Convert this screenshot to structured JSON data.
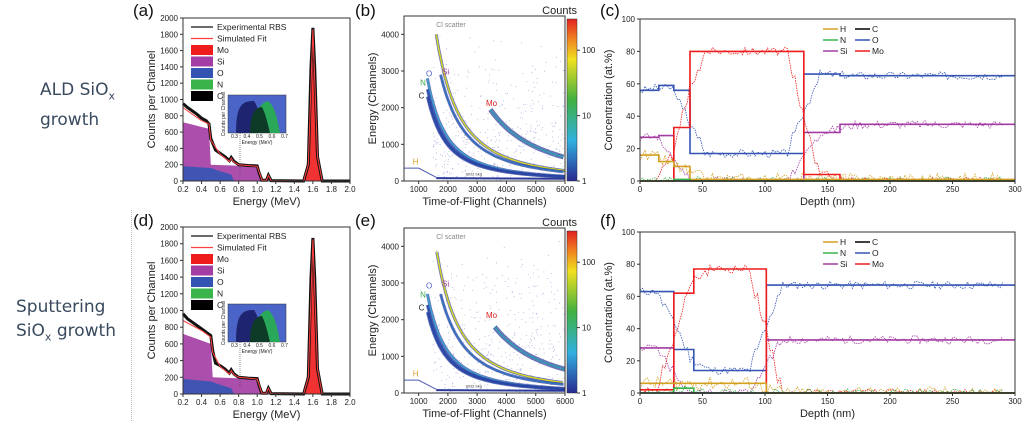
{
  "row_labels": [
    {
      "main": "ALD SiO",
      "sub": "x",
      "line2": "growth"
    },
    {
      "main": "Sputtering",
      "line2_pre": "SiO",
      "sub": "x",
      "line2": " growth"
    }
  ],
  "colors": {
    "Mo": "#ee1c1c",
    "Si": "#a33ca3",
    "O": "#3454b4",
    "N": "#38b44a",
    "C": "#000000",
    "H": "#d4a020",
    "exp": "#111111",
    "fit": "#ff4040"
  },
  "chart_data": [
    {
      "id": "a",
      "panel_label": "(a)",
      "type": "area",
      "title": "",
      "xlabel": "Energy (MeV)",
      "ylabel": "Counts per Channel",
      "xlim": [
        0.2,
        2.0
      ],
      "ylim": [
        0,
        2000
      ],
      "xticks": [
        "0.2",
        "0.4",
        "0.6",
        "0.8",
        "1.0",
        "1.2",
        "1.4",
        "1.6",
        "1.8",
        "2.0"
      ],
      "yticks": [
        "0",
        "200",
        "400",
        "600",
        "800",
        "1000",
        "1200",
        "1400",
        "1600",
        "1800",
        "2000"
      ],
      "legend": [
        "Experimental RBS",
        "Simulated Fit",
        "Mo",
        "Si",
        "O",
        "N",
        "C"
      ],
      "legend_position": "top-left",
      "series": [
        {
          "name": "Experimental RBS",
          "x": [
            0.2,
            0.25,
            0.3,
            0.35,
            0.4,
            0.45,
            0.48,
            0.5,
            0.55,
            0.6,
            0.65,
            0.7,
            0.72,
            0.75,
            0.8,
            0.9,
            1.0,
            1.02,
            1.05,
            1.1,
            1.12,
            1.15,
            1.5,
            1.55,
            1.58,
            1.6,
            1.62,
            1.65,
            1.7,
            2.0
          ],
          "y": [
            950,
            900,
            860,
            820,
            770,
            740,
            700,
            520,
            380,
            340,
            300,
            250,
            290,
            240,
            200,
            190,
            185,
            100,
            10,
            10,
            70,
            5,
            0,
            200,
            1400,
            1880,
            1400,
            300,
            0,
            0
          ]
        },
        {
          "name": "Simulated Fit",
          "x": [
            0.2,
            0.3,
            0.4,
            0.48,
            0.5,
            0.6,
            0.7,
            0.72,
            0.75,
            0.8,
            1.0,
            1.05,
            1.1,
            1.12,
            1.15,
            1.5,
            1.55,
            1.6,
            1.65,
            1.7,
            2.0
          ],
          "y": [
            900,
            820,
            740,
            700,
            500,
            330,
            240,
            280,
            230,
            200,
            180,
            10,
            10,
            70,
            5,
            0,
            200,
            1860,
            300,
            0,
            0
          ]
        },
        {
          "name": "Si",
          "x": [
            0.2,
            0.48,
            0.5,
            0.98,
            1.05,
            1.1,
            1.12,
            1.15
          ],
          "y": [
            720,
            640,
            200,
            180,
            0,
            0,
            70,
            0
          ]
        },
        {
          "name": "O",
          "x": [
            0.2,
            0.5,
            0.6,
            0.72,
            0.75
          ],
          "y": [
            180,
            160,
            120,
            80,
            0
          ]
        },
        {
          "name": "Mo",
          "x": [
            1.5,
            1.55,
            1.58,
            1.6,
            1.62,
            1.65,
            1.7
          ],
          "y": [
            0,
            300,
            1500,
            1850,
            1500,
            300,
            0
          ]
        }
      ],
      "inset": {
        "xlabel": "Energy (MeV)",
        "ylabel": "Counts per Channel",
        "xticks": [
          "0.3",
          "0.4",
          "0.5",
          "0.6",
          "0.7"
        ]
      }
    },
    {
      "id": "b",
      "panel_label": "(b)",
      "type": "heatmap",
      "xlabel": "Time-of-Flight (Channels)",
      "ylabel": "Energy (Channels)",
      "xlim": [
        500,
        6000
      ],
      "ylim": [
        0,
        4500
      ],
      "xticks": [
        "1000",
        "2000",
        "3000",
        "4000",
        "5000",
        "6000"
      ],
      "yticks": [
        "0",
        "1000",
        "2000",
        "3000",
        "4000"
      ],
      "colorbar": {
        "label": "Counts",
        "scale": "log",
        "ticks": [
          "1",
          "10",
          "100"
        ],
        "range": [
          1,
          300
        ]
      },
      "annotations": [
        "Cl scatter",
        "O",
        "Si",
        "N",
        "C",
        "Mo",
        "H",
        "SiO2 bkg"
      ],
      "curves": [
        {
          "name": "Cl",
          "tof_start": 1600,
          "e_start": 4000
        },
        {
          "name": "Si",
          "tof_start": 1750,
          "e_start": 2900
        },
        {
          "name": "O",
          "tof_start": 1300,
          "e_start": 2800
        },
        {
          "name": "N",
          "tof_start": 1300,
          "e_start": 2500
        },
        {
          "name": "C",
          "tof_start": 1300,
          "e_start": 2300
        },
        {
          "name": "Mo",
          "tof_start": 3450,
          "e_start": 1950
        }
      ]
    },
    {
      "id": "c",
      "panel_label": "(c)",
      "type": "line",
      "xlabel": "Depth (nm)",
      "ylabel": "Concentration (at.%)",
      "xlim": [
        0,
        300
      ],
      "ylim": [
        0,
        100
      ],
      "xticks": [
        "0",
        "50",
        "100",
        "150",
        "200",
        "250",
        "300"
      ],
      "yticks": [
        "0",
        "20",
        "40",
        "60",
        "80",
        "100"
      ],
      "legend": [
        "H",
        "C",
        "N",
        "O",
        "Si",
        "Mo"
      ],
      "legend_position": "top-center",
      "series": [
        {
          "name": "O",
          "x": [
            0,
            15,
            15,
            27,
            27,
            40,
            40,
            131,
            131,
            160,
            160,
            300
          ],
          "y": [
            56,
            56,
            59,
            59,
            56,
            56,
            17,
            17,
            66,
            66,
            65,
            65
          ]
        },
        {
          "name": "Si",
          "x": [
            0,
            15,
            15,
            27,
            27,
            131,
            131,
            160,
            160,
            300
          ],
          "y": [
            27,
            27,
            28,
            28,
            0,
            0,
            30,
            30,
            35,
            35
          ]
        },
        {
          "name": "Mo",
          "x": [
            0,
            27,
            27,
            40,
            40,
            131,
            131,
            160,
            160,
            300
          ],
          "y": [
            0,
            0,
            33,
            33,
            80,
            80,
            4,
            4,
            0,
            0
          ]
        },
        {
          "name": "H",
          "x": [
            0,
            15,
            15,
            27,
            27,
            40,
            40,
            300
          ],
          "y": [
            16,
            16,
            12,
            12,
            9,
            9,
            1,
            1
          ]
        },
        {
          "name": "N",
          "x": [
            0,
            27,
            27,
            40,
            40,
            300
          ],
          "y": [
            0,
            0,
            1,
            1,
            0,
            0
          ]
        },
        {
          "name": "C",
          "x": [
            0,
            300
          ],
          "y": [
            0,
            0
          ]
        }
      ]
    },
    {
      "id": "d",
      "panel_label": "(d)",
      "type": "area",
      "xlabel": "Energy (MeV)",
      "ylabel": "Counts per Channel",
      "xlim": [
        0.2,
        2.0
      ],
      "ylim": [
        0,
        2000
      ],
      "xticks": [
        "0.2",
        "0.4",
        "0.6",
        "0.8",
        "1.0",
        "1.2",
        "1.4",
        "1.6",
        "1.8",
        "2.0"
      ],
      "yticks": [
        "0",
        "200",
        "400",
        "600",
        "800",
        "1000",
        "1200",
        "1400",
        "1600",
        "1800",
        "2000"
      ],
      "legend": [
        "Experimental RBS",
        "Simulated Fit",
        "Mo",
        "Si",
        "O",
        "N",
        "C"
      ],
      "legend_position": "top-left",
      "series": [
        {
          "name": "Experimental RBS",
          "x": [
            0.2,
            0.25,
            0.3,
            0.35,
            0.4,
            0.45,
            0.5,
            0.52,
            0.55,
            0.6,
            0.65,
            0.7,
            0.72,
            0.75,
            0.8,
            0.9,
            1.0,
            1.02,
            1.05,
            1.1,
            1.12,
            1.15,
            1.5,
            1.55,
            1.58,
            1.6,
            1.62,
            1.65,
            1.7,
            2.0
          ],
          "y": [
            960,
            900,
            860,
            820,
            780,
            740,
            700,
            520,
            370,
            340,
            300,
            250,
            290,
            240,
            200,
            190,
            185,
            100,
            10,
            10,
            70,
            5,
            0,
            200,
            1400,
            1870,
            1400,
            300,
            0,
            0
          ]
        },
        {
          "name": "Simulated Fit",
          "x": [
            0.2,
            0.3,
            0.4,
            0.5,
            0.52,
            0.6,
            0.7,
            0.72,
            0.75,
            0.8,
            1.0,
            1.05,
            1.1,
            1.12,
            1.15,
            1.5,
            1.55,
            1.6,
            1.65,
            1.7,
            2.0
          ],
          "y": [
            880,
            820,
            760,
            680,
            500,
            330,
            240,
            280,
            230,
            200,
            180,
            10,
            10,
            70,
            5,
            0,
            200,
            1850,
            300,
            0,
            0
          ]
        },
        {
          "name": "Si",
          "x": [
            0.2,
            0.5,
            0.52,
            0.98,
            1.05,
            1.1,
            1.12,
            1.15
          ],
          "y": [
            720,
            600,
            200,
            180,
            0,
            0,
            70,
            0
          ]
        },
        {
          "name": "O",
          "x": [
            0.2,
            0.5,
            0.6,
            0.72,
            0.75
          ],
          "y": [
            180,
            150,
            110,
            70,
            0
          ]
        },
        {
          "name": "Mo",
          "x": [
            1.5,
            1.55,
            1.58,
            1.6,
            1.62,
            1.65,
            1.7
          ],
          "y": [
            0,
            300,
            1500,
            1850,
            1500,
            300,
            0
          ]
        }
      ],
      "inset": {
        "xlabel": "Energy (MeV)",
        "ylabel": "Counts per Channel",
        "xticks": [
          "0.3",
          "0.4",
          "0.5",
          "0.6",
          "0.7"
        ]
      }
    },
    {
      "id": "e",
      "panel_label": "(e)",
      "type": "heatmap",
      "xlabel": "Time-of-Flight (Channels)",
      "ylabel": "Energy (Channels)",
      "xlim": [
        500,
        6000
      ],
      "ylim": [
        0,
        4500
      ],
      "xticks": [
        "1000",
        "2000",
        "3000",
        "4000",
        "5000",
        "6000"
      ],
      "yticks": [
        "0",
        "1000",
        "2000",
        "3000",
        "4000"
      ],
      "colorbar": {
        "label": "Counts",
        "scale": "log",
        "ticks": [
          "1",
          "10",
          "100"
        ],
        "range": [
          1,
          300
        ]
      },
      "annotations": [
        "Cl scatter",
        "O",
        "Si",
        "N",
        "C",
        "Mo",
        "H",
        "SiO2 bkg"
      ],
      "curves": [
        {
          "name": "Cl",
          "tof_start": 1620,
          "e_start": 3850
        },
        {
          "name": "Si",
          "tof_start": 1750,
          "e_start": 2700
        },
        {
          "name": "O",
          "tof_start": 1300,
          "e_start": 2700
        },
        {
          "name": "N",
          "tof_start": 1300,
          "e_start": 2400
        },
        {
          "name": "C",
          "tof_start": 1300,
          "e_start": 2200
        },
        {
          "name": "Mo",
          "tof_start": 3600,
          "e_start": 1800
        }
      ]
    },
    {
      "id": "f",
      "panel_label": "(f)",
      "type": "line",
      "xlabel": "Depth (nm)",
      "ylabel": "Concentration (at.%)",
      "xlim": [
        0,
        300
      ],
      "ylim": [
        0,
        100
      ],
      "xticks": [
        "0",
        "50",
        "100",
        "150",
        "200",
        "250",
        "300"
      ],
      "yticks": [
        "0",
        "20",
        "40",
        "60",
        "80",
        "100"
      ],
      "legend": [
        "H",
        "C",
        "N",
        "O",
        "Si",
        "Mo"
      ],
      "legend_position": "top-center",
      "series": [
        {
          "name": "O",
          "x": [
            0,
            27,
            27,
            43,
            43,
            101,
            101,
            300
          ],
          "y": [
            63,
            63,
            27,
            27,
            14,
            14,
            67,
            67
          ]
        },
        {
          "name": "Si",
          "x": [
            0,
            27,
            27,
            101,
            101,
            300
          ],
          "y": [
            28,
            28,
            0,
            0,
            33,
            33
          ]
        },
        {
          "name": "Mo",
          "x": [
            0,
            27,
            27,
            43,
            43,
            101,
            101,
            300
          ],
          "y": [
            2,
            2,
            62,
            62,
            77,
            77,
            0,
            0
          ]
        },
        {
          "name": "H",
          "x": [
            0,
            101,
            101,
            300
          ],
          "y": [
            6,
            6,
            0,
            0
          ]
        },
        {
          "name": "N",
          "x": [
            0,
            27,
            27,
            43,
            43,
            300
          ],
          "y": [
            0,
            0,
            3,
            3,
            0,
            0
          ]
        },
        {
          "name": "C",
          "x": [
            0,
            300
          ],
          "y": [
            0,
            0
          ]
        }
      ]
    }
  ]
}
